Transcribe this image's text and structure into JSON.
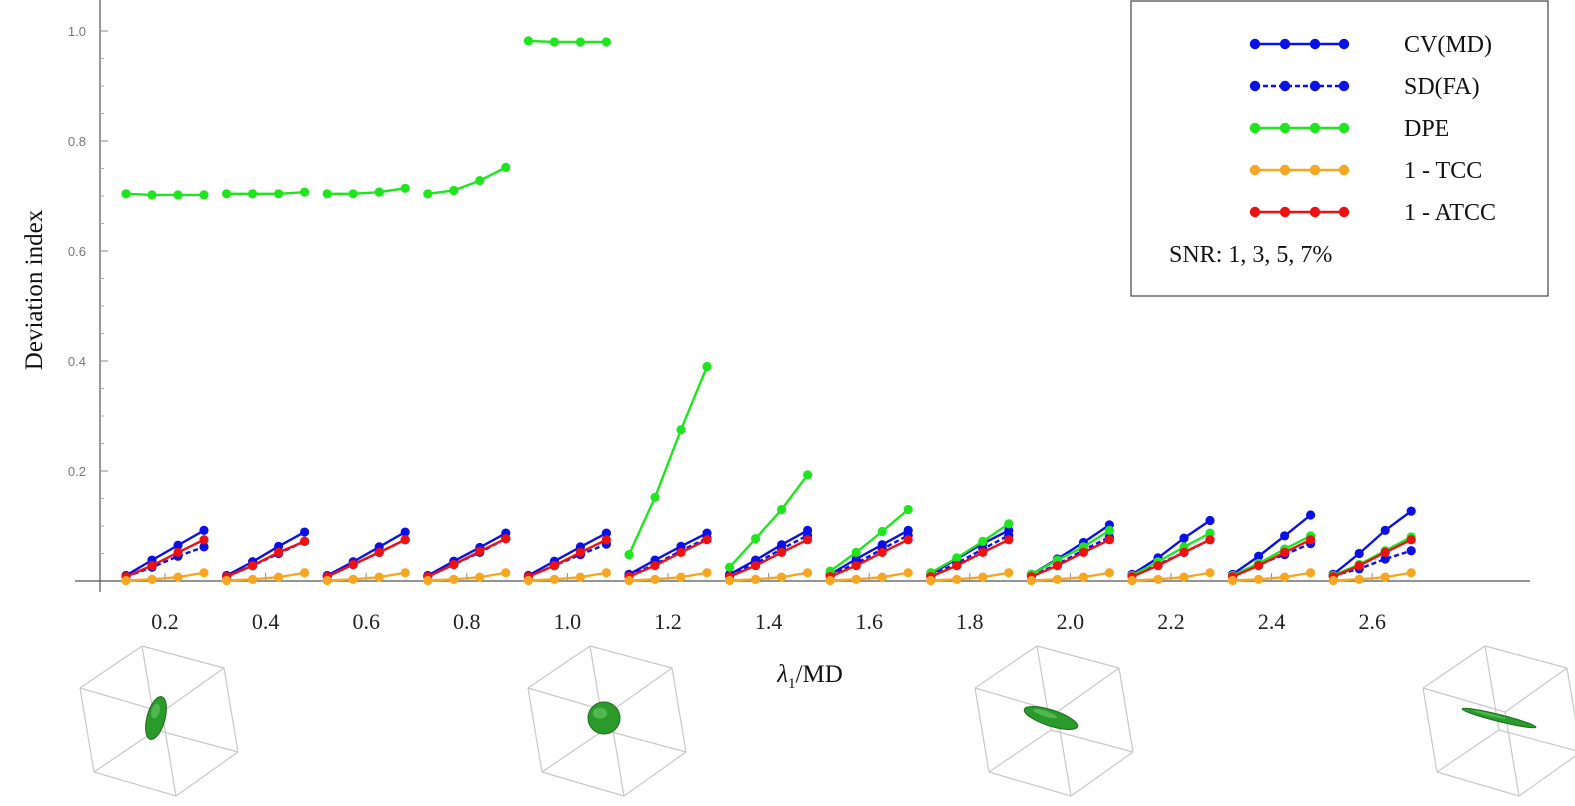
{
  "chart_data": {
    "type": "line",
    "xlabel_main": "λ",
    "xlabel_sub": "1",
    "xlabel_rest": "/MD",
    "ylabel": "Deviation index",
    "ylim": [
      0,
      1.05
    ],
    "yticks": [
      0.2,
      0.4,
      0.6,
      0.8,
      1.0
    ],
    "ytick_labels": [
      "0.2",
      "0.4",
      "0.6",
      "0.8",
      "1.0"
    ],
    "categories": [
      "0.2",
      "0.4",
      "0.6",
      "0.8",
      "1.0",
      "1.2",
      "1.4",
      "1.6",
      "1.8",
      "2.0",
      "2.2",
      "2.4",
      "2.6"
    ],
    "snr_levels": [
      1,
      3,
      5,
      7
    ],
    "grid": false,
    "legend_position": "top-right",
    "legend_note": "SNR: 1, 3, 5, 7%",
    "series": [
      {
        "name": "CV(MD)",
        "color": "#0a10e6",
        "dash": false,
        "values": [
          [
            0.01,
            0.038,
            0.065,
            0.092
          ],
          [
            0.01,
            0.035,
            0.063,
            0.089
          ],
          [
            0.01,
            0.035,
            0.062,
            0.089
          ],
          [
            0.01,
            0.036,
            0.061,
            0.087
          ],
          [
            0.01,
            0.036,
            0.062,
            0.087
          ],
          [
            0.012,
            0.038,
            0.063,
            0.087
          ],
          [
            0.012,
            0.038,
            0.066,
            0.092
          ],
          [
            0.012,
            0.04,
            0.066,
            0.092
          ],
          [
            0.012,
            0.04,
            0.068,
            0.092
          ],
          [
            0.012,
            0.04,
            0.07,
            0.102
          ],
          [
            0.012,
            0.042,
            0.078,
            0.11
          ],
          [
            0.012,
            0.045,
            0.082,
            0.12
          ],
          [
            0.012,
            0.05,
            0.092,
            0.127
          ]
        ]
      },
      {
        "name": "SD(FA)",
        "color": "#0a10e6",
        "dash": true,
        "values": [
          [
            0.008,
            0.025,
            0.045,
            0.062
          ],
          [
            0.008,
            0.028,
            0.05,
            0.072
          ],
          [
            0.008,
            0.03,
            0.052,
            0.075
          ],
          [
            0.008,
            0.03,
            0.052,
            0.077
          ],
          [
            0.008,
            0.028,
            0.048,
            0.067
          ],
          [
            0.01,
            0.03,
            0.055,
            0.078
          ],
          [
            0.01,
            0.032,
            0.058,
            0.083
          ],
          [
            0.01,
            0.032,
            0.058,
            0.083
          ],
          [
            0.01,
            0.032,
            0.058,
            0.083
          ],
          [
            0.01,
            0.03,
            0.056,
            0.08
          ],
          [
            0.01,
            0.03,
            0.052,
            0.075
          ],
          [
            0.01,
            0.03,
            0.048,
            0.068
          ],
          [
            0.01,
            0.022,
            0.04,
            0.055
          ]
        ]
      },
      {
        "name": "DPE",
        "color": "#1fe51f",
        "dash": false,
        "values": [
          [
            0.704,
            0.702,
            0.702,
            0.702
          ],
          [
            0.704,
            0.704,
            0.704,
            0.707
          ],
          [
            0.704,
            0.704,
            0.707,
            0.714
          ],
          [
            0.704,
            0.71,
            0.728,
            0.752
          ],
          [
            0.982,
            0.98,
            0.98,
            0.98
          ],
          [
            0.048,
            0.152,
            0.275,
            0.39
          ],
          [
            0.025,
            0.077,
            0.13,
            0.193
          ],
          [
            0.018,
            0.052,
            0.09,
            0.13
          ],
          [
            0.015,
            0.042,
            0.072,
            0.104
          ],
          [
            0.012,
            0.038,
            0.062,
            0.092
          ],
          [
            0.01,
            0.035,
            0.062,
            0.087
          ],
          [
            0.01,
            0.032,
            0.058,
            0.082
          ],
          [
            0.01,
            0.03,
            0.055,
            0.08
          ]
        ]
      },
      {
        "name": "1 - TCC",
        "color": "#f5a623",
        "dash": false,
        "values": [
          [
            0.001,
            0.003,
            0.007,
            0.015
          ],
          [
            0.001,
            0.003,
            0.007,
            0.015
          ],
          [
            0.001,
            0.003,
            0.007,
            0.015
          ],
          [
            0.001,
            0.003,
            0.007,
            0.015
          ],
          [
            0.001,
            0.003,
            0.007,
            0.015
          ],
          [
            0.001,
            0.003,
            0.007,
            0.015
          ],
          [
            0.001,
            0.003,
            0.007,
            0.015
          ],
          [
            0.001,
            0.003,
            0.007,
            0.015
          ],
          [
            0.001,
            0.003,
            0.007,
            0.015
          ],
          [
            0.001,
            0.003,
            0.007,
            0.015
          ],
          [
            0.001,
            0.003,
            0.007,
            0.015
          ],
          [
            0.001,
            0.003,
            0.007,
            0.015
          ],
          [
            0.001,
            0.003,
            0.007,
            0.015
          ]
        ]
      },
      {
        "name": "1 - ATCC",
        "color": "#ee1111",
        "dash": false,
        "values": [
          [
            0.008,
            0.028,
            0.052,
            0.075
          ],
          [
            0.008,
            0.028,
            0.052,
            0.072
          ],
          [
            0.008,
            0.03,
            0.052,
            0.075
          ],
          [
            0.008,
            0.03,
            0.054,
            0.077
          ],
          [
            0.008,
            0.028,
            0.052,
            0.075
          ],
          [
            0.008,
            0.028,
            0.052,
            0.075
          ],
          [
            0.008,
            0.028,
            0.052,
            0.075
          ],
          [
            0.008,
            0.028,
            0.052,
            0.075
          ],
          [
            0.008,
            0.028,
            0.052,
            0.075
          ],
          [
            0.008,
            0.028,
            0.052,
            0.075
          ],
          [
            0.008,
            0.028,
            0.052,
            0.075
          ],
          [
            0.008,
            0.028,
            0.052,
            0.075
          ],
          [
            0.008,
            0.028,
            0.052,
            0.075
          ]
        ]
      }
    ]
  },
  "illustrations": [
    {
      "name": "prolate-ellipsoid-icon",
      "shape": "prolate",
      "color": "#2a9a2a"
    },
    {
      "name": "sphere-icon",
      "shape": "sphere",
      "color": "#2a9a2a"
    },
    {
      "name": "oblate-ellipsoid-icon",
      "shape": "flat-disc",
      "color": "#2a9a2a"
    },
    {
      "name": "needle-ellipsoid-icon",
      "shape": "needle",
      "color": "#2a9a2a"
    }
  ]
}
